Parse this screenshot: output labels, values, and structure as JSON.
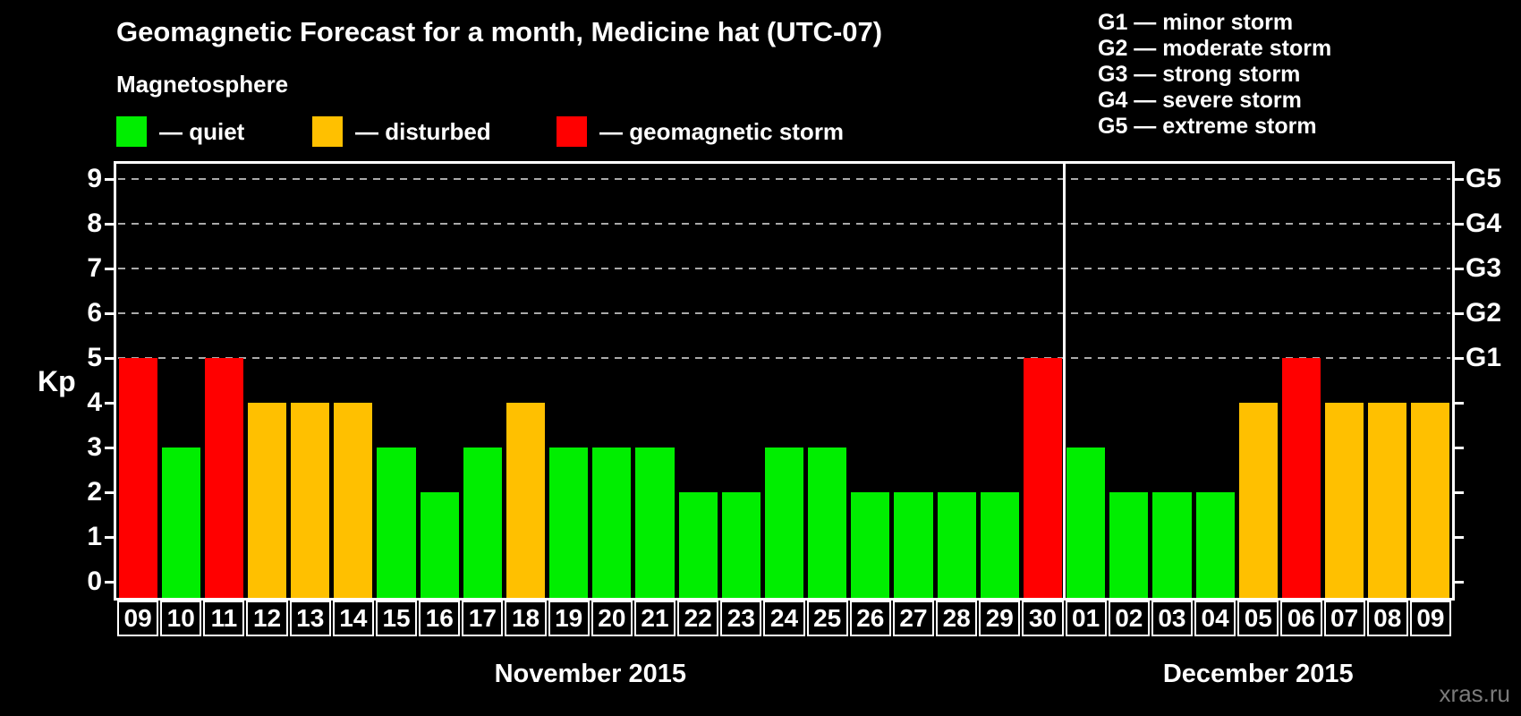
{
  "title": "Geomagnetic Forecast for a month, Medicine hat (UTC-07)",
  "legend": {
    "heading": "Magnetosphere",
    "items": [
      {
        "key": "quiet",
        "label": "— quiet"
      },
      {
        "key": "disturbed",
        "label": "— disturbed"
      },
      {
        "key": "storm",
        "label": "— geomagnetic storm"
      }
    ]
  },
  "g_scale_legend": [
    "G1 — minor storm",
    "G2 — moderate storm",
    "G3 — strong storm",
    "G4 — severe storm",
    "G5 — extreme storm"
  ],
  "watermark": "xras.ru",
  "colors": {
    "quiet": "#00ee00",
    "disturbed": "#ffc000",
    "storm": "#ff0000",
    "background": "#000000",
    "grid": "#aaaaaa",
    "axis": "#ffffff",
    "watermark": "#7b7b7b"
  },
  "chart_data": {
    "type": "bar",
    "ylabel": "Kp",
    "ylim": [
      0,
      9
    ],
    "yticks": [
      0,
      1,
      2,
      3,
      4,
      5,
      6,
      7,
      8,
      9
    ],
    "gridlines_at": [
      5,
      6,
      7,
      8,
      9
    ],
    "grid": "dashed horizontal at G-storm levels only",
    "right_axis": [
      {
        "label": "G1",
        "kp": 5
      },
      {
        "label": "G2",
        "kp": 6
      },
      {
        "label": "G3",
        "kp": 7
      },
      {
        "label": "G4",
        "kp": 8
      },
      {
        "label": "G5",
        "kp": 9
      }
    ],
    "months": [
      {
        "label": "November 2015",
        "days": [
          {
            "day": "09",
            "kp": 5,
            "status": "storm"
          },
          {
            "day": "10",
            "kp": 3,
            "status": "quiet"
          },
          {
            "day": "11",
            "kp": 5,
            "status": "storm"
          },
          {
            "day": "12",
            "kp": 4,
            "status": "disturbed"
          },
          {
            "day": "13",
            "kp": 4,
            "status": "disturbed"
          },
          {
            "day": "14",
            "kp": 4,
            "status": "disturbed"
          },
          {
            "day": "15",
            "kp": 3,
            "status": "quiet"
          },
          {
            "day": "16",
            "kp": 2,
            "status": "quiet"
          },
          {
            "day": "17",
            "kp": 3,
            "status": "quiet"
          },
          {
            "day": "18",
            "kp": 4,
            "status": "disturbed"
          },
          {
            "day": "19",
            "kp": 3,
            "status": "quiet"
          },
          {
            "day": "20",
            "kp": 3,
            "status": "quiet"
          },
          {
            "day": "21",
            "kp": 3,
            "status": "quiet"
          },
          {
            "day": "22",
            "kp": 2,
            "status": "quiet"
          },
          {
            "day": "23",
            "kp": 2,
            "status": "quiet"
          },
          {
            "day": "24",
            "kp": 3,
            "status": "quiet"
          },
          {
            "day": "25",
            "kp": 3,
            "status": "quiet"
          },
          {
            "day": "26",
            "kp": 2,
            "status": "quiet"
          },
          {
            "day": "27",
            "kp": 2,
            "status": "quiet"
          },
          {
            "day": "28",
            "kp": 2,
            "status": "quiet"
          },
          {
            "day": "29",
            "kp": 2,
            "status": "quiet"
          },
          {
            "day": "30",
            "kp": 5,
            "status": "storm"
          }
        ]
      },
      {
        "label": "December 2015",
        "days": [
          {
            "day": "01",
            "kp": 3,
            "status": "quiet"
          },
          {
            "day": "02",
            "kp": 2,
            "status": "quiet"
          },
          {
            "day": "03",
            "kp": 2,
            "status": "quiet"
          },
          {
            "day": "04",
            "kp": 2,
            "status": "quiet"
          },
          {
            "day": "05",
            "kp": 4,
            "status": "disturbed"
          },
          {
            "day": "06",
            "kp": 5,
            "status": "storm"
          },
          {
            "day": "07",
            "kp": 4,
            "status": "disturbed"
          },
          {
            "day": "08",
            "kp": 4,
            "status": "disturbed"
          },
          {
            "day": "09",
            "kp": 4,
            "status": "disturbed"
          }
        ]
      }
    ]
  }
}
